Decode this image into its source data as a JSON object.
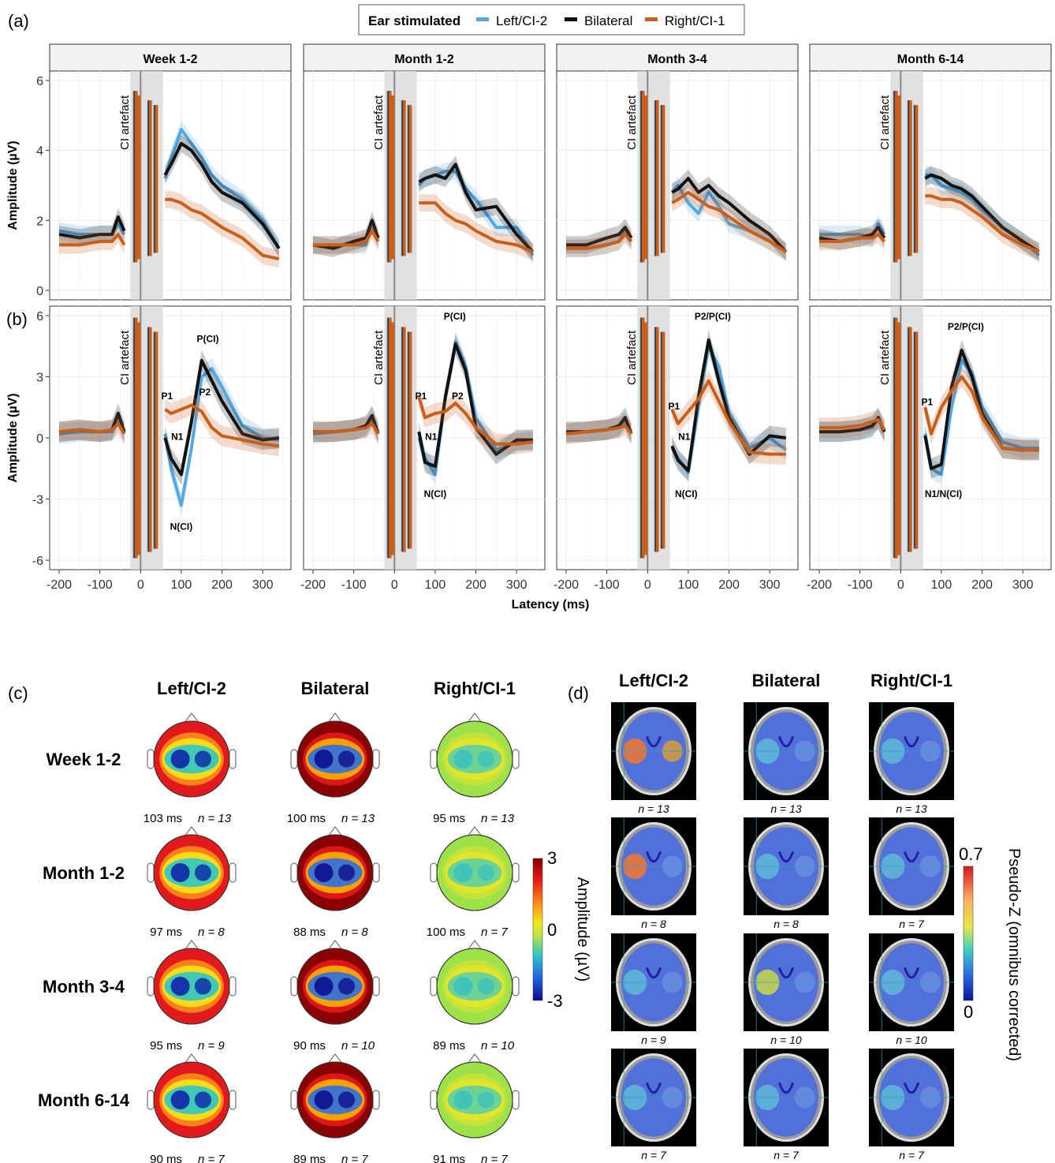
{
  "panel_labels": {
    "a": "(a)",
    "b": "(b)",
    "c": "(c)",
    "d": "(d)"
  },
  "legend": {
    "title": "Ear stimulated",
    "items": [
      {
        "label": "Left/CI-2",
        "color": "#56a8e0"
      },
      {
        "label": "Bilateral",
        "color": "#111111"
      },
      {
        "label": "Right/CI-1",
        "color": "#c95f1a"
      }
    ]
  },
  "colors": {
    "left": "#56a8e0",
    "bilateral": "#111111",
    "right": "#c95f1a",
    "strip": "#f2f2f2",
    "shade": "#d9d9d9"
  },
  "chart_data": [
    {
      "type": "line",
      "panel": "(a)",
      "facets": [
        "Week 1-2",
        "Month 1-2",
        "Month 3-4",
        "Month 6-14"
      ],
      "xlabel": "Latency (ms)",
      "ylabel": "Amplitude (µV)",
      "xlim": [
        -200,
        350
      ],
      "ylim": [
        0,
        6
      ],
      "xticks": [
        -200,
        -100,
        0,
        100,
        200,
        300
      ],
      "yticks": [
        0,
        2,
        4,
        6
      ],
      "artifact_label": "CI artefact",
      "artifact_window": [
        -25,
        55
      ],
      "x": [
        -200,
        -150,
        -100,
        -70,
        -55,
        -40,
        60,
        75,
        100,
        125,
        150,
        175,
        200,
        250,
        300,
        340
      ],
      "series": [
        {
          "name": "Left/CI-2",
          "facet_values": [
            [
              1.7,
              1.6,
              1.6,
              1.6,
              1.9,
              1.6,
              3.2,
              3.8,
              4.6,
              4.2,
              3.8,
              3.3,
              3.0,
              2.6,
              2.0,
              1.2
            ],
            [
              1.3,
              1.3,
              1.3,
              1.3,
              1.9,
              1.4,
              3.0,
              3.2,
              3.3,
              3.4,
              3.4,
              2.9,
              2.6,
              1.8,
              1.8,
              1.0
            ],
            [
              1.2,
              1.2,
              1.3,
              1.4,
              1.7,
              1.4,
              2.8,
              3.0,
              2.5,
              2.2,
              2.8,
              2.4,
              1.9,
              1.7,
              1.4,
              1.1
            ],
            [
              1.6,
              1.6,
              1.6,
              1.5,
              1.9,
              1.6,
              3.3,
              3.3,
              3.0,
              2.9,
              2.8,
              2.6,
              2.3,
              1.8,
              1.4,
              1.0
            ]
          ]
        },
        {
          "name": "Bilateral",
          "facet_values": [
            [
              1.6,
              1.5,
              1.6,
              1.6,
              2.1,
              1.7,
              3.3,
              3.6,
              4.2,
              4.0,
              3.6,
              3.1,
              2.8,
              2.5,
              1.9,
              1.2
            ],
            [
              1.3,
              1.2,
              1.4,
              1.5,
              2.0,
              1.5,
              3.1,
              3.2,
              3.3,
              3.2,
              3.6,
              2.8,
              2.3,
              2.4,
              1.6,
              1.1
            ],
            [
              1.3,
              1.3,
              1.5,
              1.6,
              1.8,
              1.5,
              2.8,
              2.9,
              3.2,
              2.8,
              3.0,
              2.7,
              2.5,
              2.0,
              1.6,
              1.1
            ],
            [
              1.5,
              1.4,
              1.5,
              1.6,
              1.8,
              1.5,
              3.2,
              3.3,
              3.2,
              3.0,
              2.9,
              2.7,
              2.4,
              1.8,
              1.4,
              1.1
            ]
          ]
        },
        {
          "name": "Right/CI-1",
          "facet_values": [
            [
              1.3,
              1.3,
              1.4,
              1.4,
              1.6,
              1.3,
              2.6,
              2.6,
              2.5,
              2.3,
              2.2,
              2.0,
              1.8,
              1.5,
              1.0,
              0.9
            ],
            [
              1.3,
              1.3,
              1.3,
              1.4,
              1.7,
              1.4,
              2.5,
              2.5,
              2.5,
              2.2,
              2.0,
              1.9,
              1.7,
              1.4,
              1.3,
              1.1
            ],
            [
              1.2,
              1.2,
              1.3,
              1.4,
              1.6,
              1.4,
              2.5,
              2.6,
              2.8,
              2.6,
              2.4,
              2.3,
              2.1,
              1.7,
              1.4,
              1.1
            ],
            [
              1.4,
              1.4,
              1.5,
              1.5,
              1.6,
              1.4,
              2.7,
              2.7,
              2.6,
              2.6,
              2.5,
              2.3,
              2.1,
              1.6,
              1.3,
              1.1
            ]
          ]
        }
      ]
    },
    {
      "type": "line",
      "panel": "(b)",
      "facets": [
        "Week 1-2",
        "Month 1-2",
        "Month 3-4",
        "Month 6-14"
      ],
      "xlabel": "Latency (ms)",
      "ylabel": "Amplitude (µV)",
      "xlim": [
        -200,
        350
      ],
      "ylim": [
        -6,
        6
      ],
      "xticks": [
        -200,
        -100,
        0,
        100,
        200,
        300
      ],
      "yticks": [
        -6,
        -3,
        0,
        3,
        6
      ],
      "artifact_label": "CI artefact",
      "artifact_window": [
        -25,
        55
      ],
      "x": [
        -200,
        -150,
        -100,
        -70,
        -55,
        -40,
        60,
        75,
        100,
        125,
        150,
        175,
        200,
        250,
        300,
        340
      ],
      "series": [
        {
          "name": "Left/CI-2",
          "facet_values": [
            [
              0.2,
              0.3,
              0.3,
              0.3,
              0.9,
              0.2,
              0.2,
              -1.5,
              -3.3,
              -0.5,
              3.0,
              3.4,
              2.5,
              0.6,
              0.0,
              -0.1
            ],
            [
              0.2,
              0.3,
              0.4,
              0.5,
              1.0,
              0.3,
              0.0,
              -1.0,
              -1.8,
              2.0,
              4.7,
              3.5,
              1.0,
              -0.6,
              -0.2,
              -0.1
            ],
            [
              0.2,
              0.3,
              0.4,
              0.5,
              0.8,
              0.3,
              -0.5,
              -1.0,
              -1.7,
              1.5,
              4.5,
              3.5,
              1.2,
              -0.5,
              0.0,
              -0.6
            ],
            [
              0.3,
              0.3,
              0.4,
              0.5,
              0.9,
              0.3,
              0.2,
              -1.5,
              -1.8,
              1.5,
              3.8,
              3.2,
              1.5,
              -0.2,
              -0.5,
              -0.5
            ]
          ]
        },
        {
          "name": "Bilateral",
          "facet_values": [
            [
              0.3,
              0.4,
              0.3,
              0.4,
              1.2,
              0.3,
              0.0,
              -1.0,
              -1.8,
              0.8,
              3.8,
              2.8,
              1.8,
              0.2,
              -0.1,
              0.0
            ],
            [
              0.3,
              0.3,
              0.4,
              0.6,
              1.1,
              0.2,
              0.3,
              -1.2,
              -1.4,
              2.0,
              4.6,
              3.3,
              0.5,
              -0.8,
              -0.1,
              -0.1
            ],
            [
              0.3,
              0.3,
              0.4,
              0.6,
              1.0,
              0.2,
              -0.4,
              -1.1,
              -1.6,
              2.0,
              4.8,
              2.8,
              1.0,
              -0.8,
              0.1,
              0.0
            ],
            [
              0.3,
              0.3,
              0.4,
              0.6,
              1.0,
              0.3,
              0.1,
              -1.5,
              -1.3,
              2.5,
              4.3,
              3.0,
              1.2,
              -0.5,
              -0.6,
              -0.6
            ]
          ]
        },
        {
          "name": "Right/CI-1",
          "facet_values": [
            [
              0.3,
              0.4,
              0.3,
              0.4,
              0.7,
              0.2,
              1.4,
              1.2,
              1.4,
              1.6,
              1.3,
              0.5,
              0.1,
              -0.1,
              -0.3,
              -0.4
            ],
            [
              0.3,
              0.3,
              0.4,
              0.5,
              0.7,
              0.2,
              2.0,
              1.0,
              1.2,
              1.3,
              1.7,
              1.2,
              0.5,
              -0.3,
              -0.3,
              -0.2
            ],
            [
              0.2,
              0.3,
              0.4,
              0.5,
              0.6,
              0.2,
              1.4,
              0.7,
              1.3,
              1.9,
              2.8,
              1.8,
              0.8,
              -0.7,
              -0.8,
              -0.8
            ],
            [
              0.5,
              0.5,
              0.6,
              0.8,
              0.9,
              0.4,
              1.5,
              0.2,
              1.5,
              2.3,
              3.0,
              2.3,
              1.0,
              -0.5,
              -0.6,
              -0.6
            ]
          ]
        }
      ],
      "annotations": [
        {
          "facet": 0,
          "items": [
            {
              "text": "P(CI)",
              "x": 165,
              "y": 4.7
            },
            {
              "text": "P1",
              "x": 65,
              "y": 1.9
            },
            {
              "text": "P2",
              "x": 158,
              "y": 2.1
            },
            {
              "text": "N1",
              "x": 90,
              "y": -0.1
            },
            {
              "text": "N(CI)",
              "x": 100,
              "y": -4.5
            }
          ]
        },
        {
          "facet": 1,
          "items": [
            {
              "text": "P(CI)",
              "x": 148,
              "y": 5.8
            },
            {
              "text": "P1",
              "x": 65,
              "y": 1.9
            },
            {
              "text": "P2",
              "x": 155,
              "y": 1.9
            },
            {
              "text": "N1",
              "x": 90,
              "y": -0.1
            },
            {
              "text": "N(CI)",
              "x": 100,
              "y": -2.9
            }
          ]
        },
        {
          "facet": 2,
          "items": [
            {
              "text": "P2/P(CI)",
              "x": 160,
              "y": 5.8
            },
            {
              "text": "P1",
              "x": 65,
              "y": 1.4
            },
            {
              "text": "N1",
              "x": 90,
              "y": -0.1
            },
            {
              "text": "N(CI)",
              "x": 95,
              "y": -2.9
            }
          ]
        },
        {
          "facet": 3,
          "items": [
            {
              "text": "P2/P(CI)",
              "x": 160,
              "y": 5.3
            },
            {
              "text": "P1",
              "x": 65,
              "y": 1.6
            },
            {
              "text": "N1/N(CI)",
              "x": 105,
              "y": -2.9
            }
          ]
        }
      ]
    },
    {
      "type": "heatmap",
      "panel": "(c)",
      "columns": [
        "Left/CI-2",
        "Bilateral",
        "Right/CI-1"
      ],
      "rows": [
        "Week 1-2",
        "Month 1-2",
        "Month 3-4",
        "Month 6-14"
      ],
      "captions": [
        [
          {
            "ms": "103 ms",
            "n": "n = 13"
          },
          {
            "ms": "100 ms",
            "n": "n = 13"
          },
          {
            "ms": "95 ms",
            "n": "n = 13"
          }
        ],
        [
          {
            "ms": "97 ms",
            "n": "n = 8"
          },
          {
            "ms": "88 ms",
            "n": "n = 8"
          },
          {
            "ms": "100 ms",
            "n": "n = 7"
          }
        ],
        [
          {
            "ms": "95 ms",
            "n": "n = 9"
          },
          {
            "ms": "90 ms",
            "n": "n = 10"
          },
          {
            "ms": "89 ms",
            "n": "n = 10"
          }
        ],
        [
          {
            "ms": "90 ms",
            "n": "n = 7"
          },
          {
            "ms": "89 ms",
            "n": "n = 7"
          },
          {
            "ms": "91 ms",
            "n": "n = 7"
          }
        ]
      ],
      "colorbar": {
        "label": "Amplitude (µV)",
        "ticks": [
          "3",
          "0",
          "-3"
        ],
        "range": [
          -3,
          3
        ]
      }
    },
    {
      "type": "heatmap",
      "panel": "(d)",
      "columns": [
        "Left/CI-2",
        "Bilateral",
        "Right/CI-1"
      ],
      "n_labels": [
        [
          "n = 13",
          "n = 13",
          "n = 13"
        ],
        [
          "n = 8",
          "n = 8",
          "n = 7"
        ],
        [
          "n = 9",
          "n = 10",
          "n = 10"
        ],
        [
          "n = 7",
          "n = 7",
          "n = 7"
        ]
      ],
      "colorbar": {
        "label": "Pseudo-Z (omnibus corrected)",
        "ticks": [
          "0.7",
          "0"
        ],
        "range": [
          0,
          0.7
        ]
      }
    }
  ]
}
